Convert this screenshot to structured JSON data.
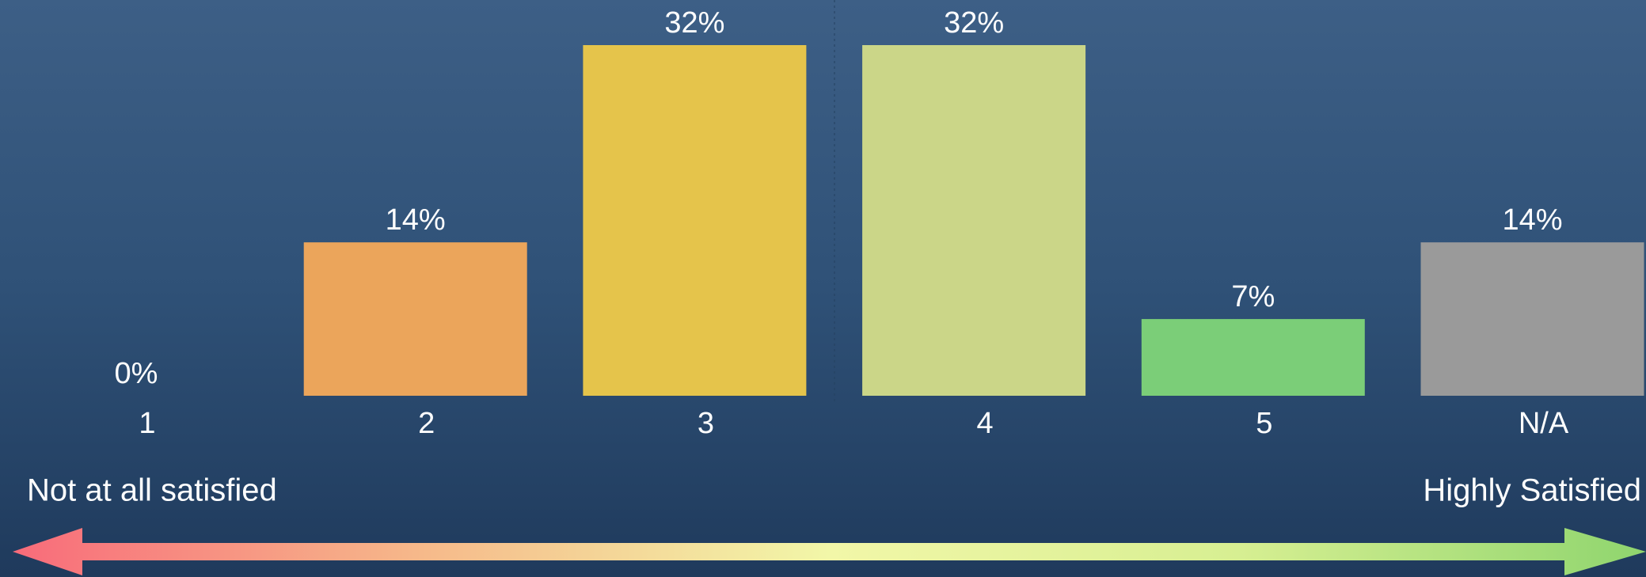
{
  "chart_data": {
    "type": "bar",
    "categories": [
      "1",
      "2",
      "3",
      "4",
      "5",
      "N/A"
    ],
    "values": [
      0,
      14,
      32,
      32,
      7,
      14
    ],
    "value_labels": [
      "0%",
      "14%",
      "32%",
      "32%",
      "7%",
      "14%"
    ],
    "colors": [
      "#e8655a",
      "#eba55b",
      "#e5c44b",
      "#cbd688",
      "#7bce78",
      "#9a9a9a"
    ],
    "annotations": [
      "Not at all satisfied",
      "Highly Satisfied"
    ]
  }
}
